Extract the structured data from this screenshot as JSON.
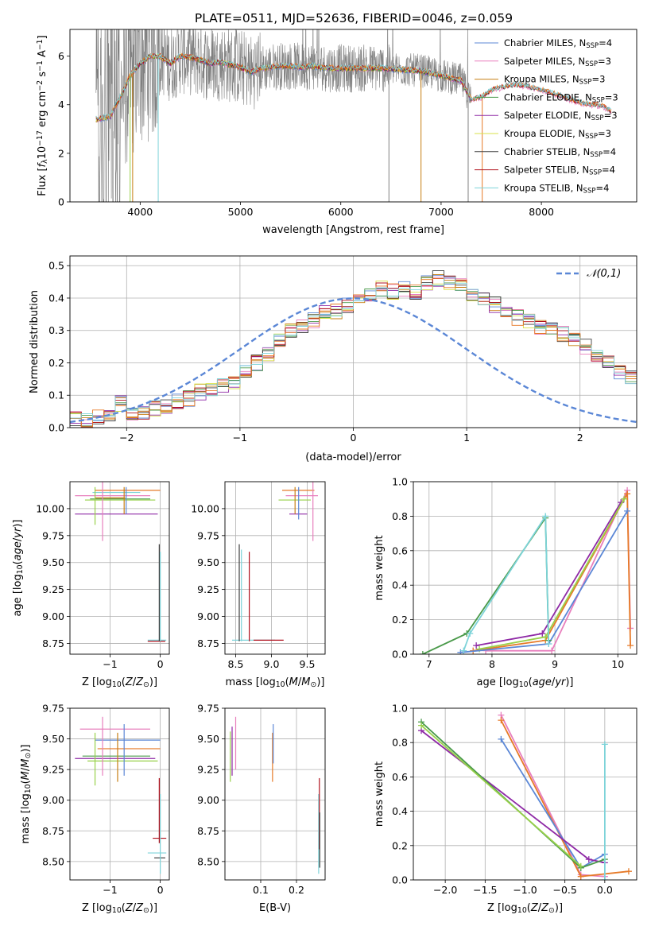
{
  "figure_title": "PLATE=0511, MJD=52636, FIBERID=0046, z=0.059",
  "colors": {
    "Chabrier MILES": "#5b87d6",
    "Salpeter MILES": "#e87fbd",
    "Kroupa MILES": "#c77f14",
    "Chabrier ELODIE": "#4a9a4a",
    "Salpeter ELODIE": "#8f2aa6",
    "Kroupa ELODIE": "#d9e04a",
    "Chabrier STELIB": "#404040",
    "Salpeter STELIB": "#b0101c",
    "Kroupa STELIB": "#7dd3d9",
    "orange": "#e67a28",
    "lime": "#98d04a",
    "data": "#808080"
  },
  "chart_data": [
    {
      "id": "spectrum",
      "type": "line",
      "title": "PLATE=0511, MJD=52636, FIBERID=0046, z=0.059",
      "xlabel": "wavelength [Angstrom, rest frame]",
      "ylabel": "Flux [f_λ10^−17 erg cm^−2 s^−1 A^−1]",
      "xlim": [
        3300,
        8950
      ],
      "ylim": [
        0,
        7.1
      ],
      "xticks": [
        4000,
        5000,
        6000,
        7000,
        8000
      ],
      "yticks": [
        0,
        2,
        4,
        6
      ],
      "legend_position": "top-right",
      "legend": [
        {
          "label": "Chabrier MILES, N",
          "sub": "SSP",
          "suffix": "=4",
          "color": "#5b87d6"
        },
        {
          "label": "Salpeter MILES, N",
          "sub": "SSP",
          "suffix": "=3",
          "color": "#e87fbd"
        },
        {
          "label": "Kroupa MILES, N",
          "sub": "SSP",
          "suffix": "=3",
          "color": "#c77f14"
        },
        {
          "label": "Chabrier ELODIE, N",
          "sub": "SSP",
          "suffix": "=3",
          "color": "#4a9a4a"
        },
        {
          "label": "Salpeter ELODIE, N",
          "sub": "SSP",
          "suffix": "=3",
          "color": "#8f2aa6"
        },
        {
          "label": "Kroupa ELODIE, N",
          "sub": "SSP",
          "suffix": "=3",
          "color": "#d9e04a"
        },
        {
          "label": "Chabrier STELIB, N",
          "sub": "SSP",
          "suffix": "=4",
          "color": "#404040"
        },
        {
          "label": "Salpeter STELIB, N",
          "sub": "SSP",
          "suffix": "=4",
          "color": "#b0101c"
        },
        {
          "label": "Kroupa STELIB, N",
          "sub": "SSP",
          "suffix": "=4",
          "color": "#7dd3d9"
        }
      ],
      "model_continuum": [
        [
          3560,
          3.4
        ],
        [
          3700,
          3.5
        ],
        [
          3800,
          4.3
        ],
        [
          3900,
          5.2
        ],
        [
          4000,
          5.7
        ],
        [
          4100,
          6.0
        ],
        [
          4200,
          6.0
        ],
        [
          4300,
          5.7
        ],
        [
          4400,
          6.0
        ],
        [
          4500,
          5.95
        ],
        [
          4600,
          5.85
        ],
        [
          4700,
          5.7
        ],
        [
          4800,
          5.75
        ],
        [
          4900,
          5.65
        ],
        [
          5000,
          5.55
        ],
        [
          5100,
          5.35
        ],
        [
          5200,
          5.5
        ],
        [
          5300,
          5.55
        ],
        [
          5400,
          5.6
        ],
        [
          5500,
          5.6
        ],
        [
          5600,
          5.55
        ],
        [
          5700,
          5.6
        ],
        [
          5800,
          5.55
        ],
        [
          5900,
          5.5
        ],
        [
          6000,
          5.5
        ],
        [
          6200,
          5.5
        ],
        [
          6400,
          5.5
        ],
        [
          6600,
          5.45
        ],
        [
          6800,
          5.4
        ],
        [
          7000,
          5.2
        ],
        [
          7200,
          5.0
        ],
        [
          7300,
          4.2
        ],
        [
          7400,
          4.3
        ],
        [
          7500,
          4.6
        ],
        [
          7600,
          4.7
        ],
        [
          7700,
          4.8
        ],
        [
          7800,
          4.8
        ],
        [
          8000,
          4.6
        ],
        [
          8200,
          4.35
        ],
        [
          8400,
          4.05
        ],
        [
          8600,
          3.95
        ],
        [
          8700,
          3.7
        ]
      ],
      "data_noise_range": [
        3560,
        7300
      ],
      "drop_lines": [
        {
          "x": 3900,
          "color": "#98d04a"
        },
        {
          "x": 3925,
          "color": "#c77f14"
        },
        {
          "x": 4180,
          "color": "#7dd3d9"
        },
        {
          "x": 6480,
          "color": "#808080"
        },
        {
          "x": 6800,
          "color": "#c77f14"
        },
        {
          "x": 7270,
          "color": "#808080"
        },
        {
          "x": 7410,
          "color": "#e67a28"
        }
      ]
    },
    {
      "id": "residuals",
      "type": "line",
      "xlabel": "(data-model)/error",
      "ylabel": "Normed distribution",
      "xlim": [
        -2.5,
        2.5
      ],
      "ylim": [
        0,
        0.53
      ],
      "xticks": [
        -2,
        -1,
        0,
        1,
        2
      ],
      "yticks": [
        0.0,
        0.1,
        0.2,
        0.3,
        0.4,
        0.5
      ],
      "legend_position": "top-right",
      "reference_label": "𝒩(0,1)",
      "bin_width": 0.1,
      "bins_start": -2.5,
      "step_series_reference": [
        0.025,
        0.025,
        0.03,
        0.035,
        0.075,
        0.045,
        0.05,
        0.06,
        0.065,
        0.08,
        0.09,
        0.11,
        0.12,
        0.13,
        0.14,
        0.17,
        0.2,
        0.23,
        0.275,
        0.3,
        0.31,
        0.33,
        0.36,
        0.36,
        0.38,
        0.4,
        0.41,
        0.43,
        0.42,
        0.43,
        0.42,
        0.45,
        0.46,
        0.45,
        0.44,
        0.41,
        0.4,
        0.38,
        0.36,
        0.34,
        0.33,
        0.31,
        0.3,
        0.29,
        0.27,
        0.25,
        0.22,
        0.2,
        0.17,
        0.16
      ]
    },
    {
      "id": "age-z",
      "type": "scatter",
      "xlabel": "Z [log10(Z/Z☉)]",
      "ylabel": "age [log10(age/yr)]",
      "xlim": [
        -1.8,
        0.18
      ],
      "ylim": [
        8.65,
        10.25
      ],
      "xticks": [
        -1,
        0
      ],
      "yticks": [
        8.75,
        9.0,
        9.25,
        9.5,
        9.75,
        10.0
      ],
      "hlines": [
        {
          "y": 10.17,
          "x0": -1.3,
          "x1": 0.0,
          "color": "#e67a28"
        },
        {
          "y": 10.15,
          "x0": -1.35,
          "x1": -0.4,
          "color": "#7dd3d9"
        },
        {
          "y": 10.12,
          "x0": -1.7,
          "x1": -0.2,
          "color": "#e87fbd"
        },
        {
          "y": 10.1,
          "x0": -1.3,
          "x1": -0.7,
          "color": "#c77f14"
        },
        {
          "y": 10.09,
          "x0": -1.4,
          "x1": -0.2,
          "color": "#4a9a4a"
        },
        {
          "y": 10.08,
          "x0": -1.5,
          "x1": -0.1,
          "color": "#98d04a"
        },
        {
          "y": 9.95,
          "x0": -1.7,
          "x1": -0.05,
          "color": "#8f2aa6"
        },
        {
          "y": 8.78,
          "x0": -0.25,
          "x1": 0.12,
          "color": "#7dd3d9"
        },
        {
          "y": 8.77,
          "x0": -0.25,
          "x1": 0.1,
          "color": "#b0101c"
        }
      ],
      "vlines": [
        {
          "x": -1.3,
          "y0": 9.85,
          "y1": 10.2,
          "color": "#98d04a"
        },
        {
          "x": -1.15,
          "y0": 9.7,
          "y1": 10.25,
          "color": "#e87fbd"
        },
        {
          "x": -0.72,
          "y0": 9.95,
          "y1": 10.2,
          "color": "#c77f14"
        },
        {
          "x": -0.68,
          "y0": 9.95,
          "y1": 10.2,
          "color": "#5b87d6"
        },
        {
          "x": -0.02,
          "y0": 8.77,
          "y1": 9.67,
          "color": "#404040"
        },
        {
          "x": 0.0,
          "y0": 8.77,
          "y1": 9.6,
          "color": "#7dd3d9"
        }
      ]
    },
    {
      "id": "age-mass",
      "type": "scatter",
      "xlabel": "mass [log10(M/M☉)]",
      "ylabel": "",
      "xlim": [
        8.35,
        9.75
      ],
      "ylim": [
        8.65,
        10.25
      ],
      "xticks": [
        8.5,
        9.0,
        9.5
      ],
      "yticks": [
        8.75,
        9.0,
        9.25,
        9.5,
        9.75,
        10.0
      ],
      "hlines": [
        {
          "y": 10.17,
          "x0": 9.15,
          "x1": 9.6,
          "color": "#e67a28"
        },
        {
          "y": 10.12,
          "x0": 9.2,
          "x1": 9.65,
          "color": "#e87fbd"
        },
        {
          "y": 10.08,
          "x0": 9.1,
          "x1": 9.55,
          "color": "#98d04a"
        },
        {
          "y": 9.95,
          "x0": 9.25,
          "x1": 9.5,
          "color": "#8f2aa6"
        },
        {
          "y": 8.78,
          "x0": 8.45,
          "x1": 9.05,
          "color": "#7dd3d9"
        },
        {
          "y": 8.78,
          "x0": 8.75,
          "x1": 9.17,
          "color": "#b0101c"
        }
      ],
      "vlines": [
        {
          "x": 9.33,
          "y0": 9.95,
          "y1": 10.2,
          "color": "#c77f14"
        },
        {
          "x": 9.38,
          "y0": 9.9,
          "y1": 10.2,
          "color": "#5b87d6"
        },
        {
          "x": 9.58,
          "y0": 9.7,
          "y1": 10.25,
          "color": "#e87fbd"
        },
        {
          "x": 8.55,
          "y0": 8.77,
          "y1": 9.67,
          "color": "#404040"
        },
        {
          "x": 8.58,
          "y0": 8.77,
          "y1": 9.62,
          "color": "#7dd3d9"
        },
        {
          "x": 8.69,
          "y0": 8.77,
          "y1": 9.6,
          "color": "#b0101c"
        }
      ]
    },
    {
      "id": "weight-age",
      "type": "line",
      "xlabel": "age [log10(age/yr)]",
      "ylabel": "mass weight",
      "xlim": [
        6.75,
        10.3
      ],
      "ylim": [
        0,
        1.0
      ],
      "xticks": [
        7,
        8,
        9,
        10
      ],
      "yticks": [
        0.0,
        0.2,
        0.4,
        0.6,
        0.8,
        1.0
      ],
      "series": [
        {
          "color": "#e87fbd",
          "points": [
            [
              7.9,
              0.02
            ],
            [
              8.95,
              0.02
            ],
            [
              10.15,
              0.95
            ],
            [
              10.2,
              0.15
            ]
          ]
        },
        {
          "color": "#e67a28",
          "points": [
            [
              7.7,
              0.02
            ],
            [
              8.85,
              0.08
            ],
            [
              10.15,
              0.93
            ],
            [
              10.2,
              0.05
            ]
          ]
        },
        {
          "color": "#8f2aa6",
          "points": [
            [
              7.75,
              0.05
            ],
            [
              8.8,
              0.12
            ],
            [
              10.05,
              0.88
            ]
          ]
        },
        {
          "color": "#98d04a",
          "points": [
            [
              7.8,
              0.03
            ],
            [
              8.85,
              0.1
            ],
            [
              10.1,
              0.9
            ]
          ]
        },
        {
          "color": "#5b87d6",
          "points": [
            [
              7.5,
              0.01
            ],
            [
              8.9,
              0.06
            ],
            [
              10.15,
              0.83
            ]
          ]
        },
        {
          "color": "#4a9a4a",
          "points": [
            [
              6.9,
              0.0
            ],
            [
              7.6,
              0.12
            ],
            [
              8.85,
              0.79
            ],
            [
              8.9,
              0.08
            ]
          ]
        },
        {
          "color": "#7dd3d9",
          "points": [
            [
              7.55,
              0.02
            ],
            [
              7.65,
              0.12
            ],
            [
              8.85,
              0.8
            ],
            [
              8.9,
              0.06
            ]
          ]
        }
      ]
    },
    {
      "id": "mass-z",
      "type": "scatter",
      "xlabel": "Z [log10(Z/Z☉)]",
      "ylabel": "mass [log10(M/M☉)]",
      "xlim": [
        -1.8,
        0.18
      ],
      "ylim": [
        8.35,
        9.75
      ],
      "xticks": [
        -1,
        0
      ],
      "yticks": [
        8.5,
        8.75,
        9.0,
        9.25,
        9.5,
        9.75
      ],
      "hlines": [
        {
          "y": 9.58,
          "x0": -1.6,
          "x1": -0.2,
          "color": "#e87fbd"
        },
        {
          "y": 9.49,
          "x0": -1.3,
          "x1": 0.0,
          "color": "#5b87d6"
        },
        {
          "y": 9.42,
          "x0": -1.25,
          "x1": 0.0,
          "color": "#e67a28"
        },
        {
          "y": 9.36,
          "x0": -1.55,
          "x1": -0.2,
          "color": "#4a9a4a"
        },
        {
          "y": 9.34,
          "x0": -1.7,
          "x1": -0.1,
          "color": "#8f2aa6"
        },
        {
          "y": 9.32,
          "x0": -1.45,
          "x1": -0.05,
          "color": "#98d04a"
        },
        {
          "y": 8.69,
          "x0": -0.15,
          "x1": 0.12,
          "color": "#b0101c"
        },
        {
          "y": 8.57,
          "x0": -0.25,
          "x1": 0.12,
          "color": "#7dd3d9"
        },
        {
          "y": 8.53,
          "x0": -0.12,
          "x1": 0.1,
          "color": "#404040"
        }
      ],
      "vlines": [
        {
          "x": -1.3,
          "y0": 9.12,
          "y1": 9.55,
          "color": "#98d04a"
        },
        {
          "x": -1.15,
          "y0": 9.2,
          "y1": 9.68,
          "color": "#e87fbd"
        },
        {
          "x": -0.85,
          "y0": 9.15,
          "y1": 9.55,
          "color": "#c77f14"
        },
        {
          "x": -0.72,
          "y0": 9.2,
          "y1": 9.62,
          "color": "#5b87d6"
        },
        {
          "x": 0.0,
          "y0": 8.4,
          "y1": 9.05,
          "color": "#7dd3d9"
        },
        {
          "x": -0.02,
          "y0": 8.65,
          "y1": 9.18,
          "color": "#b0101c"
        }
      ]
    },
    {
      "id": "mass-ebv",
      "type": "scatter",
      "xlabel": "E(B-V)",
      "ylabel": "",
      "xlim": [
        0.0,
        0.28
      ],
      "ylim": [
        8.35,
        9.75
      ],
      "xticks": [
        0.1,
        0.2
      ],
      "yticks": [
        8.5,
        8.75,
        9.0,
        9.25,
        9.5,
        9.75
      ],
      "hlines": [],
      "vlines": [
        {
          "x": 0.015,
          "y0": 9.15,
          "y1": 9.56,
          "color": "#98d04a"
        },
        {
          "x": 0.02,
          "y0": 9.2,
          "y1": 9.6,
          "color": "#8f2aa6"
        },
        {
          "x": 0.03,
          "y0": 9.25,
          "y1": 9.68,
          "color": "#e87fbd"
        },
        {
          "x": 0.133,
          "y0": 9.15,
          "y1": 9.55,
          "color": "#e67a28"
        },
        {
          "x": 0.135,
          "y0": 9.3,
          "y1": 9.62,
          "color": "#5b87d6"
        },
        {
          "x": 0.262,
          "y0": 8.4,
          "y1": 9.05,
          "color": "#7dd3d9"
        },
        {
          "x": 0.264,
          "y0": 8.6,
          "y1": 9.18,
          "color": "#b0101c"
        },
        {
          "x": 0.265,
          "y0": 8.45,
          "y1": 8.9,
          "color": "#404040"
        }
      ]
    },
    {
      "id": "weight-z",
      "type": "line",
      "xlabel": "Z [log10(Z/Z☉)]",
      "ylabel": "mass weight",
      "xlim": [
        -2.4,
        0.4
      ],
      "ylim": [
        0,
        1.0
      ],
      "xticks": [
        -2.0,
        -1.5,
        -1.0,
        -0.5,
        0.0
      ],
      "yticks": [
        0.0,
        0.2,
        0.4,
        0.6,
        0.8,
        1.0
      ],
      "series": [
        {
          "color": "#e87fbd",
          "points": [
            [
              -1.3,
              0.96
            ],
            [
              -0.3,
              0.03
            ],
            [
              0.0,
              0.02
            ]
          ]
        },
        {
          "color": "#e67a28",
          "points": [
            [
              -1.3,
              0.93
            ],
            [
              -0.3,
              0.02
            ],
            [
              0.3,
              0.05
            ]
          ]
        },
        {
          "color": "#5b87d6",
          "points": [
            [
              -1.3,
              0.82
            ],
            [
              -0.3,
              0.07
            ],
            [
              0.0,
              0.15
            ]
          ]
        },
        {
          "color": "#8f2aa6",
          "points": [
            [
              -2.3,
              0.87
            ],
            [
              -0.2,
              0.12
            ],
            [
              0.0,
              0.1
            ]
          ]
        },
        {
          "color": "#4a9a4a",
          "points": [
            [
              -2.3,
              0.92
            ],
            [
              -0.3,
              0.07
            ],
            [
              0.0,
              0.12
            ]
          ]
        },
        {
          "color": "#98d04a",
          "points": [
            [
              -2.3,
              0.9
            ],
            [
              -0.3,
              0.08
            ]
          ]
        },
        {
          "color": "#7dd3d9",
          "points": [
            [
              0.0,
              0.79
            ],
            [
              0.0,
              0.0
            ]
          ]
        }
      ]
    }
  ]
}
